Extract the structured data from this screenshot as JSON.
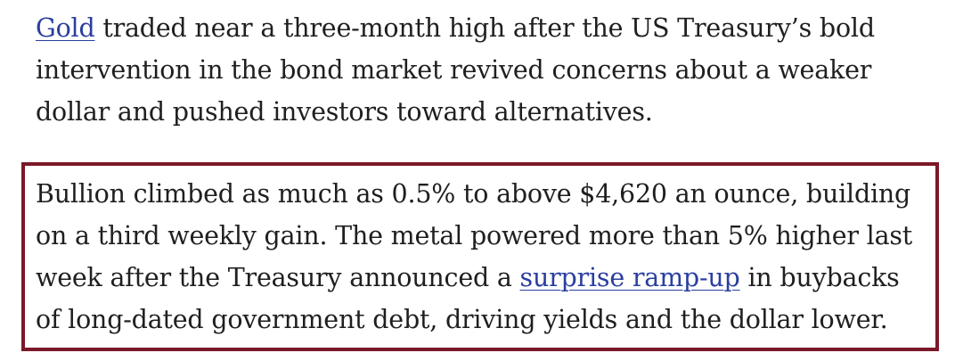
{
  "paragraphs": [
    {
      "boxed": false,
      "lines": [
        [
          {
            "text": "Gold",
            "link": true
          },
          {
            "text": " traded near a three-month high after the US Treasury’s bold",
            "link": false
          }
        ],
        [
          {
            "text": "intervention in the bond market revived concerns about a weaker",
            "link": false
          }
        ],
        [
          {
            "text": "dollar and pushed investors toward alternatives.",
            "link": false
          }
        ]
      ]
    },
    {
      "boxed": true,
      "lines": [
        [
          {
            "text": "Bullion climbed as much as 0.5% to above $4,620 an ounce, building",
            "link": false
          }
        ],
        [
          {
            "text": "on a third weekly gain. The metal powered more than 5% higher last",
            "link": false
          }
        ],
        [
          {
            "text": "week after the Treasury announced a ",
            "link": false
          },
          {
            "text": "surprise ramp-up",
            "link": true
          },
          {
            "text": " in buybacks",
            "link": false
          }
        ],
        [
          {
            "text": "of long-dated government debt, driving yields and the dollar lower.",
            "link": false
          }
        ]
      ]
    }
  ]
}
